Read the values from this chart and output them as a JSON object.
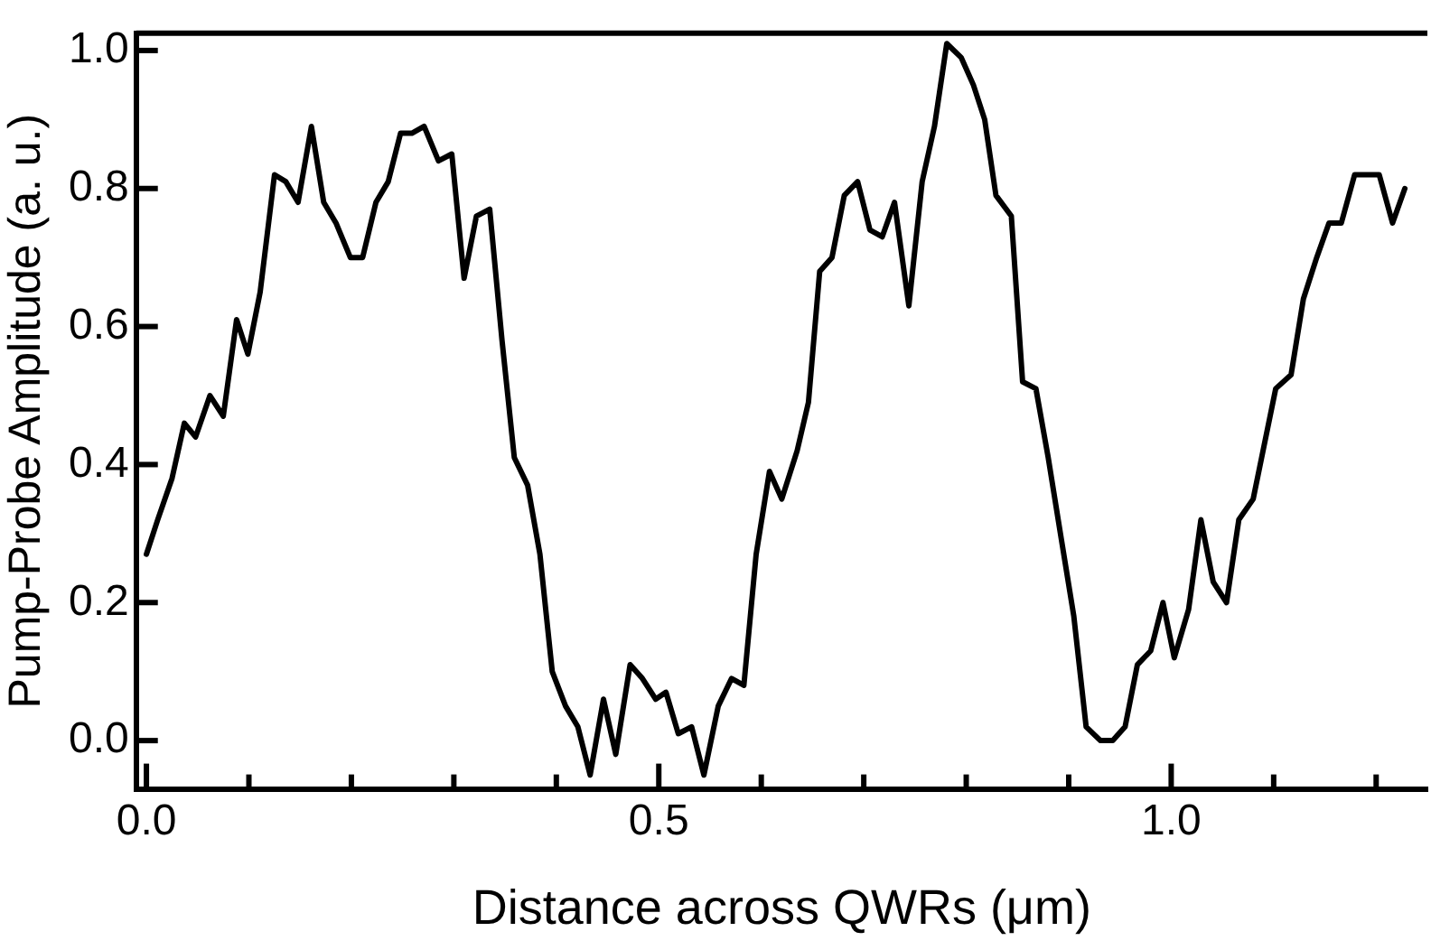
{
  "chart_data": {
    "type": "line",
    "xlabel": "Distance across QWRs (μm)",
    "ylabel": "Pump-Probe Amplitude (a. u.)",
    "xlim": [
      -0.01,
      1.25
    ],
    "ylim": [
      -0.07,
      1.025
    ],
    "xticks": [
      {
        "value": 0,
        "label": "0.0"
      },
      {
        "value": 0.1,
        "label": null
      },
      {
        "value": 0.2,
        "label": null
      },
      {
        "value": 0.3,
        "label": null
      },
      {
        "value": 0.4,
        "label": null
      },
      {
        "value": 0.5,
        "label": "0.5"
      },
      {
        "value": 0.6,
        "label": null
      },
      {
        "value": 0.7,
        "label": null
      },
      {
        "value": 0.8,
        "label": null
      },
      {
        "value": 0.9,
        "label": null
      },
      {
        "value": 1.0,
        "label": "1.0"
      },
      {
        "value": 1.1,
        "label": null
      },
      {
        "value": 1.2,
        "label": null
      }
    ],
    "yticks": [
      {
        "value": 0,
        "label": "0.0"
      },
      {
        "value": 0.2,
        "label": "0.2"
      },
      {
        "value": 0.4,
        "label": "0.4"
      },
      {
        "value": 0.6,
        "label": "0.6"
      },
      {
        "value": 0.8,
        "label": "0.8"
      },
      {
        "value": 1.0,
        "label": "1.0"
      }
    ],
    "grid": false,
    "legend": false,
    "marker": "none",
    "line_style": "solid",
    "series": [
      {
        "color": "#000000",
        "x": [
          0.0,
          0.011,
          0.025,
          0.037,
          0.048,
          0.062,
          0.075,
          0.088,
          0.099,
          0.111,
          0.125,
          0.136,
          0.148,
          0.161,
          0.173,
          0.185,
          0.199,
          0.211,
          0.224,
          0.236,
          0.248,
          0.259,
          0.271,
          0.285,
          0.298,
          0.31,
          0.322,
          0.335,
          0.347,
          0.359,
          0.372,
          0.384,
          0.396,
          0.409,
          0.421,
          0.433,
          0.446,
          0.458,
          0.472,
          0.484,
          0.497,
          0.507,
          0.519,
          0.532,
          0.544,
          0.558,
          0.571,
          0.583,
          0.595,
          0.608,
          0.62,
          0.635,
          0.646,
          0.657,
          0.669,
          0.681,
          0.694,
          0.706,
          0.718,
          0.73,
          0.744,
          0.757,
          0.769,
          0.781,
          0.795,
          0.807,
          0.818,
          0.829,
          0.844,
          0.855,
          0.868,
          0.88,
          0.893,
          0.905,
          0.917,
          0.931,
          0.943,
          0.955,
          0.967,
          0.98,
          0.992,
          1.003,
          1.017,
          1.029,
          1.041,
          1.054,
          1.066,
          1.08,
          1.102,
          1.117,
          1.129,
          1.142,
          1.154,
          1.166,
          1.179,
          1.191,
          1.203,
          1.216,
          1.228
        ],
        "values": [
          0.27,
          0.32,
          0.38,
          0.46,
          0.44,
          0.5,
          0.47,
          0.61,
          0.56,
          0.65,
          0.82,
          0.81,
          0.78,
          0.89,
          0.78,
          0.75,
          0.7,
          0.7,
          0.78,
          0.81,
          0.88,
          0.88,
          0.89,
          0.84,
          0.85,
          0.67,
          0.76,
          0.77,
          0.58,
          0.41,
          0.37,
          0.27,
          0.1,
          0.05,
          0.02,
          -0.05,
          0.06,
          -0.02,
          0.11,
          0.09,
          0.06,
          0.07,
          0.01,
          0.02,
          -0.05,
          0.05,
          0.09,
          0.08,
          0.27,
          0.39,
          0.35,
          0.42,
          0.49,
          0.68,
          0.7,
          0.79,
          0.81,
          0.74,
          0.73,
          0.78,
          0.63,
          0.81,
          0.89,
          1.01,
          0.99,
          0.95,
          0.9,
          0.79,
          0.76,
          0.52,
          0.51,
          0.41,
          0.29,
          0.18,
          0.02,
          0.0,
          0.0,
          0.02,
          0.11,
          0.13,
          0.2,
          0.12,
          0.19,
          0.32,
          0.23,
          0.2,
          0.32,
          0.35,
          0.51,
          0.53,
          0.64,
          0.7,
          0.75,
          0.75,
          0.82,
          0.82,
          0.82,
          0.75,
          0.8
        ]
      }
    ]
  }
}
